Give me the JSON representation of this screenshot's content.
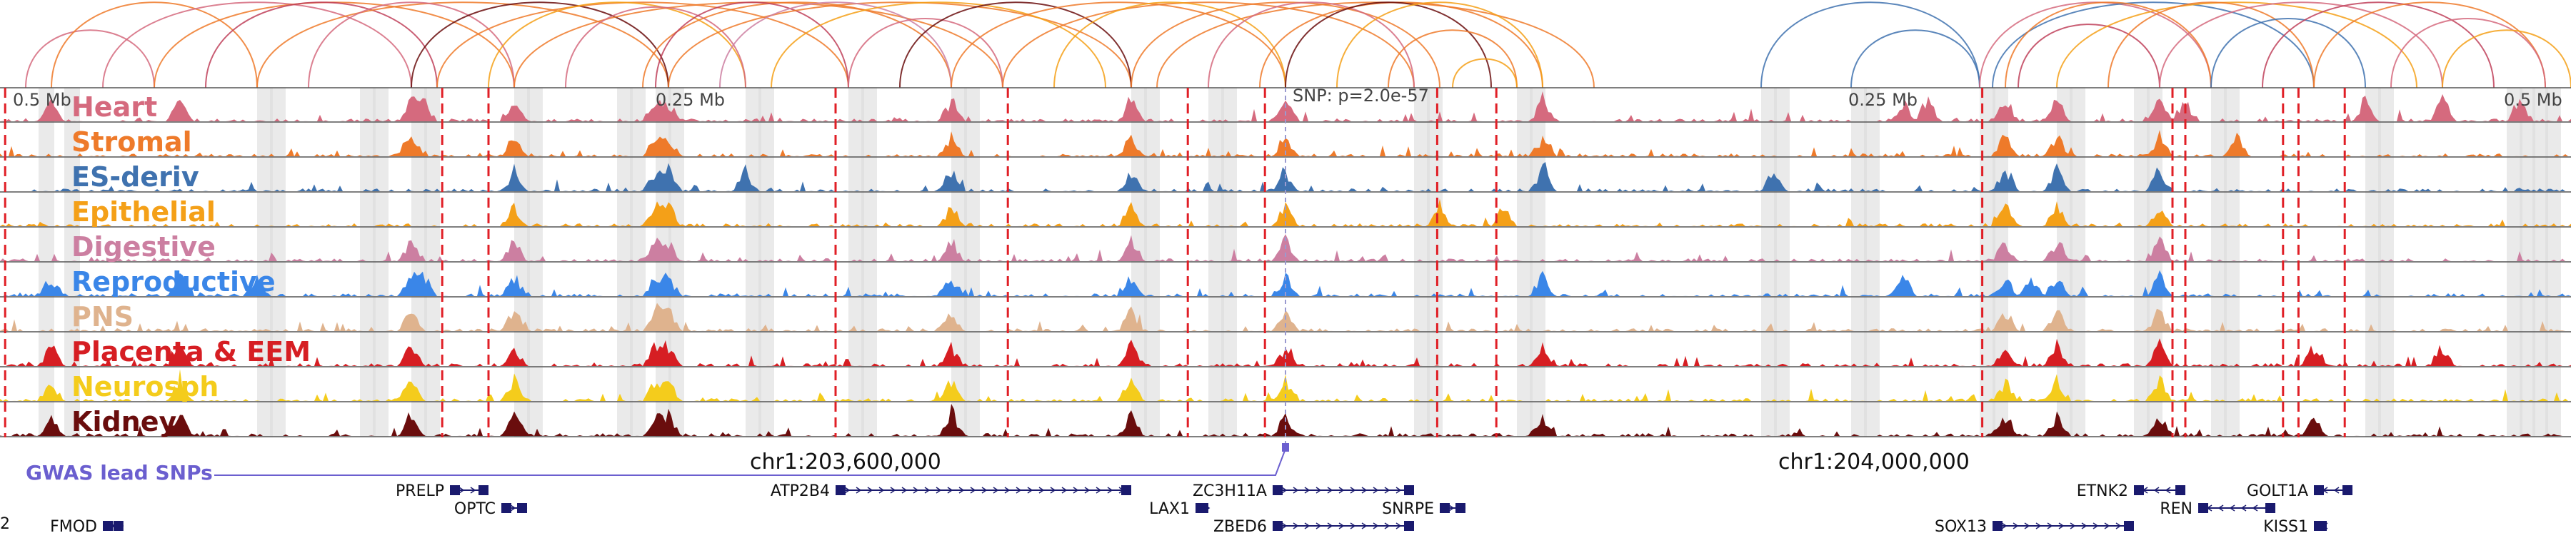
{
  "scale_labels": {
    "left": "0.5 Mb",
    "mid1": "0.25 Mb",
    "snp": "SNP: p=2.0e-57",
    "mid2": "0.25 Mb",
    "right": "0.5 Mb"
  },
  "tracks": [
    {
      "name": "Heart",
      "color": "#d56a7e",
      "seed": 11,
      "peaks": [
        0.02,
        0.07,
        0.16,
        0.165,
        0.2,
        0.255,
        0.26,
        0.37,
        0.44,
        0.5,
        0.6,
        0.74,
        0.75,
        0.78,
        0.8,
        0.84,
        0.85,
        0.92,
        0.95,
        0.98
      ]
    },
    {
      "name": "Stromal",
      "color": "#ee7a2a",
      "seed": 23,
      "peaks": [
        0.16,
        0.2,
        0.255,
        0.26,
        0.37,
        0.44,
        0.5,
        0.6,
        0.78,
        0.8,
        0.84,
        0.87
      ]
    },
    {
      "name": "ES-deriv",
      "color": "#3f72af",
      "seed": 37,
      "peaks": [
        0.2,
        0.255,
        0.26,
        0.29,
        0.37,
        0.44,
        0.5,
        0.6,
        0.69,
        0.78,
        0.8,
        0.84
      ]
    },
    {
      "name": "Epithelial",
      "color": "#f4a018",
      "seed": 41,
      "peaks": [
        0.2,
        0.255,
        0.26,
        0.37,
        0.44,
        0.5,
        0.56,
        0.585,
        0.78,
        0.8,
        0.84
      ]
    },
    {
      "name": "Digestive",
      "color": "#cc7fa1",
      "seed": 53,
      "peaks": [
        0.16,
        0.2,
        0.255,
        0.26,
        0.37,
        0.44,
        0.5,
        0.78,
        0.8,
        0.84
      ]
    },
    {
      "name": "Reproductive",
      "color": "#3a86e8",
      "seed": 67,
      "peaks": [
        0.02,
        0.07,
        0.1,
        0.16,
        0.165,
        0.2,
        0.255,
        0.26,
        0.37,
        0.44,
        0.5,
        0.6,
        0.74,
        0.78,
        0.79,
        0.8,
        0.84
      ]
    },
    {
      "name": "PNS",
      "color": "#dfb38e",
      "seed": 71,
      "peaks": [
        0.16,
        0.2,
        0.255,
        0.26,
        0.37,
        0.44,
        0.5,
        0.78,
        0.8,
        0.84
      ]
    },
    {
      "name": "Placenta & EEM",
      "color": "#d61e23",
      "seed": 83,
      "peaks": [
        0.02,
        0.07,
        0.16,
        0.2,
        0.255,
        0.26,
        0.37,
        0.44,
        0.5,
        0.6,
        0.78,
        0.8,
        0.84,
        0.9,
        0.95
      ]
    },
    {
      "name": "Neurosph",
      "color": "#f4cc1c",
      "seed": 97,
      "peaks": [
        0.02,
        0.07,
        0.16,
        0.2,
        0.255,
        0.26,
        0.37,
        0.44,
        0.5,
        0.78,
        0.8,
        0.84
      ]
    },
    {
      "name": "Kidney",
      "color": "#6a0d0d",
      "seed": 101,
      "peaks": [
        0.02,
        0.07,
        0.16,
        0.2,
        0.255,
        0.26,
        0.37,
        0.44,
        0.5,
        0.6,
        0.78,
        0.8,
        0.84,
        0.9
      ]
    }
  ],
  "arcs": [
    {
      "a": 0.01,
      "b": 0.06,
      "color": "#d56a7e"
    },
    {
      "a": 0.02,
      "b": 0.1,
      "color": "#ee7a2a"
    },
    {
      "a": 0.04,
      "b": 0.16,
      "color": "#d56a7e"
    },
    {
      "a": 0.06,
      "b": 0.2,
      "color": "#ee7a2a"
    },
    {
      "a": 0.08,
      "b": 0.17,
      "color": "#c0415a"
    },
    {
      "a": 0.1,
      "b": 0.26,
      "color": "#ee7a2a"
    },
    {
      "a": 0.12,
      "b": 0.2,
      "color": "#d56a7e"
    },
    {
      "a": 0.16,
      "b": 0.26,
      "color": "#6a0d0d"
    },
    {
      "a": 0.17,
      "b": 0.33,
      "color": "#ee7a2a"
    },
    {
      "a": 0.19,
      "b": 0.29,
      "color": "#f4a018"
    },
    {
      "a": 0.2,
      "b": 0.39,
      "color": "#ee7a2a"
    },
    {
      "a": 0.22,
      "b": 0.29,
      "color": "#d56a7e"
    },
    {
      "a": 0.25,
      "b": 0.37,
      "color": "#ee7a2a"
    },
    {
      "a": 0.255,
      "b": 0.33,
      "color": "#c0415a"
    },
    {
      "a": 0.26,
      "b": 0.44,
      "color": "#ee7a2a"
    },
    {
      "a": 0.28,
      "b": 0.37,
      "color": "#cc7fa1"
    },
    {
      "a": 0.3,
      "b": 0.43,
      "color": "#f4a018"
    },
    {
      "a": 0.33,
      "b": 0.39,
      "color": "#d56a7e"
    },
    {
      "a": 0.35,
      "b": 0.44,
      "color": "#6a0d0d"
    },
    {
      "a": 0.37,
      "b": 0.5,
      "color": "#ee7a2a"
    },
    {
      "a": 0.39,
      "b": 0.55,
      "color": "#ee7a2a"
    },
    {
      "a": 0.41,
      "b": 0.5,
      "color": "#f4a018"
    },
    {
      "a": 0.44,
      "b": 0.56,
      "color": "#ee7a2a"
    },
    {
      "a": 0.45,
      "b": 0.62,
      "color": "#ee7a2a"
    },
    {
      "a": 0.47,
      "b": 0.55,
      "color": "#d56a7e"
    },
    {
      "a": 0.49,
      "b": 0.6,
      "color": "#ee7a2a"
    },
    {
      "a": 0.5,
      "b": 0.58,
      "color": "#6a0d0d"
    },
    {
      "a": 0.52,
      "b": 0.6,
      "color": "#f4a018"
    },
    {
      "a": 0.54,
      "b": 0.59,
      "color": "#ee7a2a"
    },
    {
      "a": 0.565,
      "b": 0.59,
      "color": "#f4a018"
    },
    {
      "a": 0.685,
      "b": 0.77,
      "color": "#3f72af"
    },
    {
      "a": 0.72,
      "b": 0.77,
      "color": "#3f72af"
    },
    {
      "a": 0.77,
      "b": 0.86,
      "color": "#d56a7e"
    },
    {
      "a": 0.775,
      "b": 0.9,
      "color": "#3f72af"
    },
    {
      "a": 0.78,
      "b": 0.86,
      "color": "#ee7a2a"
    },
    {
      "a": 0.785,
      "b": 0.84,
      "color": "#c0415a"
    },
    {
      "a": 0.8,
      "b": 0.94,
      "color": "#f4a018"
    },
    {
      "a": 0.82,
      "b": 0.9,
      "color": "#ee7a2a"
    },
    {
      "a": 0.84,
      "b": 0.95,
      "color": "#d56a7e"
    },
    {
      "a": 0.86,
      "b": 0.92,
      "color": "#3f72af"
    },
    {
      "a": 0.88,
      "b": 0.97,
      "color": "#c0415a"
    },
    {
      "a": 0.9,
      "b": 0.99,
      "color": "#ee7a2a"
    },
    {
      "a": 0.93,
      "b": 0.99,
      "color": "#d56a7e"
    },
    {
      "a": 0.95,
      "b": 1.0,
      "color": "#f4a018"
    }
  ],
  "highlight_bands": [
    0.015,
    0.025,
    0.1,
    0.105,
    0.14,
    0.145,
    0.16,
    0.165,
    0.2,
    0.205,
    0.24,
    0.245,
    0.255,
    0.26,
    0.29,
    0.295,
    0.33,
    0.335,
    0.37,
    0.375,
    0.44,
    0.445,
    0.47,
    0.475,
    0.55,
    0.555,
    0.59,
    0.595,
    0.685,
    0.69,
    0.72,
    0.725,
    0.77,
    0.775,
    0.8,
    0.805,
    0.83,
    0.835,
    0.86,
    0.865,
    0.92,
    0.925,
    0.975,
    0.98,
    0.985,
    0.99
  ],
  "red_markers": [
    0.002,
    0.172,
    0.19,
    0.325,
    0.392,
    0.462,
    0.492,
    0.559,
    0.582,
    0.771,
    0.845,
    0.85,
    0.888,
    0.894,
    0.912
  ],
  "snp_marker": 0.5,
  "coord_labels": {
    "left": "chr1:203,600,000",
    "right": "chr1:204,000,000"
  },
  "snp_track_label": "GWAS lead SNPs",
  "genes": [
    {
      "name": "PRELP",
      "row": 0,
      "start": 0.175,
      "end": 0.19,
      "strand": "+"
    },
    {
      "name": "OPTC",
      "row": 1,
      "start": 0.195,
      "end": 0.205,
      "strand": "+"
    },
    {
      "name": "ATP2B4",
      "row": 0,
      "start": 0.325,
      "end": 0.44,
      "strand": "+"
    },
    {
      "name": "LAX1",
      "row": 1,
      "start": 0.465,
      "end": 0.47,
      "strand": "+"
    },
    {
      "name": "ZC3H11A",
      "row": 0,
      "start": 0.495,
      "end": 0.55,
      "strand": "+"
    },
    {
      "name": "ZBED6",
      "row": 2,
      "start": 0.495,
      "end": 0.55,
      "strand": "+"
    },
    {
      "name": "SNRPE",
      "row": 1,
      "start": 0.56,
      "end": 0.57,
      "strand": "+"
    },
    {
      "name": "FMOD",
      "row": 2,
      "start": 0.04,
      "end": 0.048,
      "strand": "-"
    },
    {
      "name": "SOX13",
      "row": 2,
      "start": 0.775,
      "end": 0.83,
      "strand": "+"
    },
    {
      "name": "ETNK2",
      "row": 0,
      "start": 0.83,
      "end": 0.85,
      "strand": "-"
    },
    {
      "name": "REN",
      "row": 1,
      "start": 0.855,
      "end": 0.885,
      "strand": "-"
    },
    {
      "name": "GOLT1A",
      "row": 0,
      "start": 0.9,
      "end": 0.915,
      "strand": "-"
    },
    {
      "name": "KISS1",
      "row": 2,
      "start": 0.9,
      "end": 0.905,
      "strand": "-"
    }
  ],
  "edge_gene_label": "2"
}
